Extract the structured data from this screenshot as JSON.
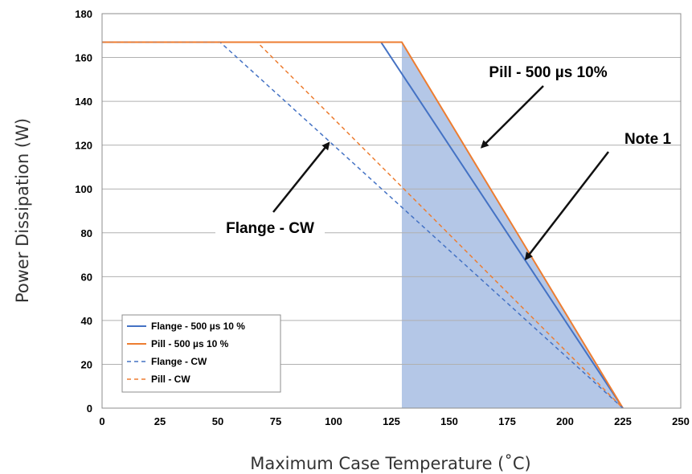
{
  "chart_data": {
    "type": "line",
    "xlabel": "Maximum Case Temperature (˚C)",
    "ylabel": "Power Dissipation (W)",
    "xlim": [
      0,
      250
    ],
    "ylim": [
      0,
      180
    ],
    "x_ticks": [
      0,
      25,
      50,
      75,
      100,
      125,
      150,
      175,
      200,
      225,
      250
    ],
    "y_ticks": [
      0,
      20,
      40,
      60,
      80,
      100,
      120,
      140,
      160,
      180
    ],
    "grid": "horizontal",
    "legend_position": "bottom-left",
    "series": [
      {
        "name": "Flange - 500 µs 10 %",
        "style": "solid",
        "color": "#4472c4",
        "x": [
          0,
          120.5,
          225
        ],
        "y": [
          167,
          167,
          0
        ]
      },
      {
        "name": "Pill - 500 µs 10 %",
        "style": "solid",
        "color": "#ed7d31",
        "x": [
          0,
          129.5,
          225
        ],
        "y": [
          167,
          167,
          0
        ]
      },
      {
        "name": "Flange - CW",
        "style": "dashed",
        "color": "#4472c4",
        "x": [
          0,
          51,
          225
        ],
        "y": [
          167,
          167,
          0
        ]
      },
      {
        "name": "Pill - CW",
        "style": "dashed",
        "color": "#ed7d31",
        "x": [
          0,
          67,
          225
        ],
        "y": [
          167,
          167,
          0
        ]
      }
    ],
    "shaded_region": {
      "color": "#b4c7e7",
      "points": [
        [
          129.5,
          0
        ],
        [
          129.5,
          167
        ],
        [
          225,
          0
        ]
      ]
    },
    "annotations": [
      {
        "text": "Pill - 500 µs 10%",
        "arrow_to": [
          164,
          119
        ]
      },
      {
        "text": "Note 1",
        "arrow_to": [
          183,
          68
        ]
      },
      {
        "text": "Flange - CW",
        "arrow_to": [
          98,
          121
        ]
      }
    ]
  }
}
